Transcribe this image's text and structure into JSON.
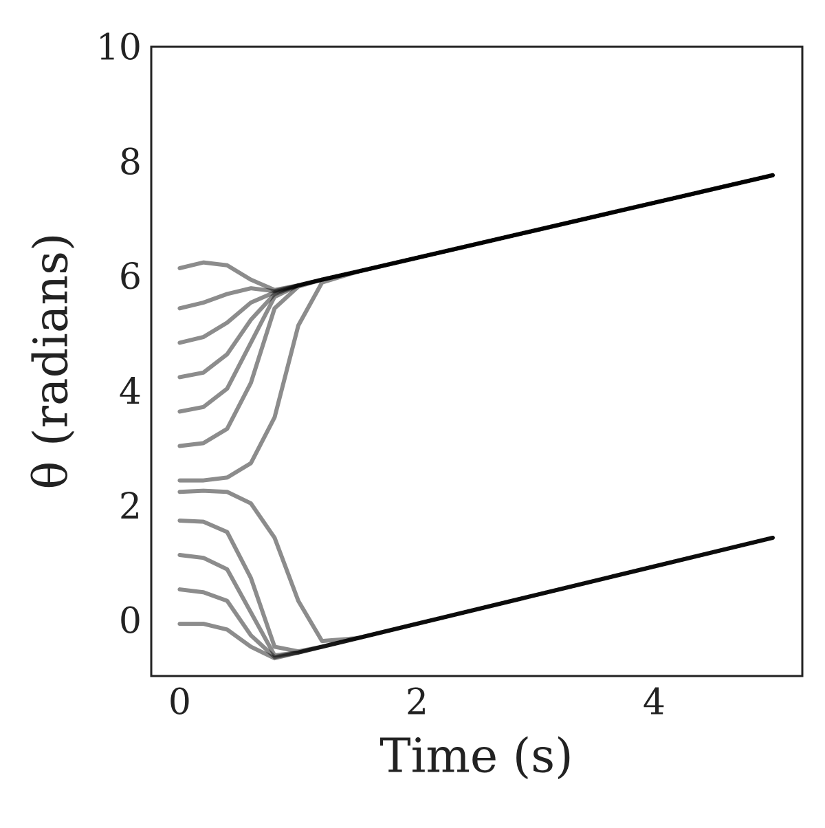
{
  "chart_data": {
    "type": "line",
    "xlabel": "Time (s)",
    "ylabel": "θ (radians)",
    "x": [
      0,
      0.2,
      0.4,
      0.6,
      0.8,
      1.0,
      1.2,
      1.5,
      2,
      3,
      4,
      5
    ],
    "series": [
      {
        "color": "#000000",
        "values": [
          0,
          0.0,
          -0.1,
          -0.4,
          -0.6,
          -0.5,
          -0.4,
          -0.25,
          0,
          0.5,
          1,
          1.5
        ]
      },
      {
        "color": "#000000",
        "values": [
          0.6,
          0.55,
          0.4,
          -0.2,
          -0.58,
          -0.5,
          -0.4,
          -0.25,
          0,
          0.5,
          1,
          1.5
        ]
      },
      {
        "color": "#000000",
        "values": [
          1.2,
          1.15,
          0.95,
          0.2,
          -0.55,
          -0.5,
          -0.4,
          -0.25,
          0,
          0.5,
          1,
          1.5
        ]
      },
      {
        "color": "#000000",
        "values": [
          1.8,
          1.78,
          1.6,
          0.8,
          -0.4,
          -0.48,
          -0.4,
          -0.25,
          0,
          0.5,
          1,
          1.5
        ]
      },
      {
        "color": "#000000",
        "values": [
          2.3,
          2.32,
          2.3,
          2.1,
          1.5,
          0.4,
          -0.3,
          -0.25,
          0,
          0.5,
          1,
          1.5
        ]
      },
      {
        "color": "#000000",
        "values": [
          2.5,
          2.5,
          2.55,
          2.8,
          3.6,
          5.2,
          5.95,
          6.14,
          6.38,
          6.86,
          7.34,
          7.82
        ]
      },
      {
        "color": "#000000",
        "values": [
          3.1,
          3.15,
          3.4,
          4.2,
          5.5,
          5.88,
          6.0,
          6.14,
          6.38,
          6.86,
          7.34,
          7.82
        ]
      },
      {
        "color": "#000000",
        "values": [
          3.7,
          3.78,
          4.1,
          4.9,
          5.7,
          5.9,
          6.0,
          6.14,
          6.38,
          6.86,
          7.34,
          7.82
        ]
      },
      {
        "color": "#000000",
        "values": [
          4.3,
          4.38,
          4.7,
          5.3,
          5.75,
          5.9,
          6.0,
          6.14,
          6.38,
          6.86,
          7.34,
          7.82
        ]
      },
      {
        "color": "#000000",
        "values": [
          4.9,
          5.0,
          5.25,
          5.6,
          5.78,
          5.9,
          6.0,
          6.14,
          6.38,
          6.86,
          7.34,
          7.82
        ]
      },
      {
        "color": "#000000",
        "values": [
          5.5,
          5.6,
          5.75,
          5.85,
          5.8,
          5.9,
          6.0,
          6.14,
          6.38,
          6.86,
          7.34,
          7.82
        ]
      },
      {
        "color": "#000000",
        "values": [
          6.2,
          6.3,
          6.25,
          6.0,
          5.82,
          5.9,
          6.0,
          6.14,
          6.38,
          6.86,
          7.34,
          7.82
        ]
      }
    ],
    "alpha": 0.45,
    "xlim": [
      -0.24,
      5.25
    ],
    "xticks": [
      0,
      2,
      4
    ],
    "ylim": [
      -0.91,
      10.06
    ],
    "yticks": [
      0,
      2,
      4,
      6,
      8,
      10
    ],
    "grid": false
  }
}
